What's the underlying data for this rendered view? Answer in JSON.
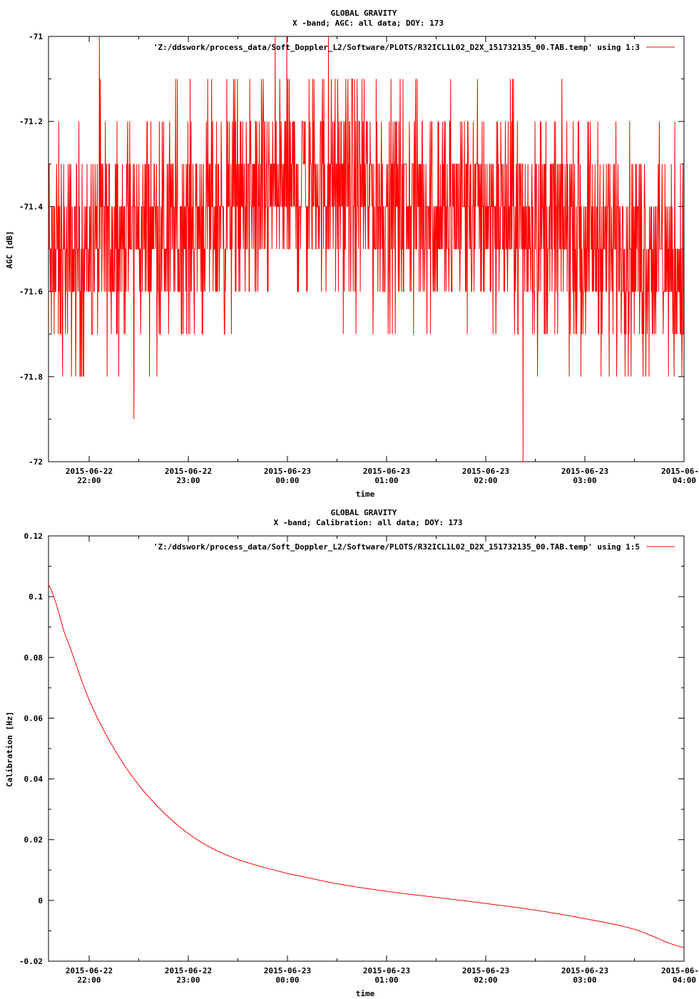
{
  "chart_data": [
    {
      "type": "line",
      "title": "GLOBAL GRAVITY",
      "subtitle": "X -band; AGC: all data; DOY: 173",
      "xlabel": "time",
      "ylabel": "AGC [dB]",
      "ylim": [
        -72,
        -71
      ],
      "yticks": [
        "-71",
        "-71.2",
        "-71.4",
        "-71.6",
        "-71.8",
        "-72"
      ],
      "xtick_dates": [
        "2015-06-22",
        "2015-06-22",
        "2015-06-23",
        "2015-06-23",
        "2015-06-23",
        "2015-06-23",
        "2015-06-"
      ],
      "xtick_times": [
        "22:00",
        "23:00",
        "00:00",
        "01:00",
        "02:00",
        "03:00",
        "04:00"
      ],
      "x_range_hours": [
        21.59,
        28.0
      ],
      "series": [
        {
          "name": "'Z:/ddswork/process_data/Soft_Doppler_L2/Software/PLOTS/R32ICL1L02_D2X_151732135_00.TAB.temp' using 1:3",
          "color": "#ff0000",
          "style": "noisy",
          "mean": -71.45,
          "spread_levels": [
            -71.1,
            -71.2,
            -71.3,
            -71.4,
            -71.5,
            -71.6,
            -71.7,
            -71.8,
            -71.9,
            -72.0
          ],
          "x": [
            21.6,
            22.0,
            22.5,
            23.0,
            23.5,
            24.0,
            24.5,
            25.0,
            25.5,
            26.0,
            26.5,
            27.0,
            27.5,
            28.0
          ],
          "y": [
            -71.55,
            -71.5,
            -71.45,
            -71.45,
            -71.4,
            -71.35,
            -71.35,
            -71.4,
            -71.4,
            -71.4,
            -71.45,
            -71.45,
            -71.5,
            -71.55
          ]
        }
      ],
      "grid": false,
      "legend": "top-right"
    },
    {
      "type": "line",
      "title": "GLOBAL GRAVITY",
      "subtitle": "X -band; Calibration: all data; DOY: 173",
      "xlabel": "time",
      "ylabel": "Calibration [Hz]",
      "ylim": [
        -0.02,
        0.12
      ],
      "yticks": [
        "0.12",
        "0.1",
        "0.08",
        "0.06",
        "0.04",
        "0.02",
        "0",
        "-0.02"
      ],
      "xtick_dates": [
        "2015-06-22",
        "2015-06-22",
        "2015-06-23",
        "2015-06-23",
        "2015-06-23",
        "2015-06-23",
        "2015-06-"
      ],
      "xtick_times": [
        "22:00",
        "23:00",
        "00:00",
        "01:00",
        "02:00",
        "03:00",
        "04:00"
      ],
      "x_range_hours": [
        21.59,
        28.0
      ],
      "series": [
        {
          "name": "'Z:/ddswork/process_data/Soft_Doppler_L2/Software/PLOTS/R32ICL1L02_D2X_151732135_00.TAB.temp' using 1:5",
          "color": "#ff0000",
          "x": [
            21.59,
            21.75,
            22.0,
            22.25,
            22.5,
            22.75,
            23.0,
            23.25,
            23.5,
            23.75,
            24.0,
            24.5,
            25.0,
            25.5,
            26.0,
            26.5,
            27.0,
            27.5,
            28.0
          ],
          "y": [
            0.104,
            0.088,
            0.066,
            0.05,
            0.038,
            0.029,
            0.022,
            0.017,
            0.0135,
            0.011,
            0.0088,
            0.0055,
            0.003,
            0.001,
            -0.001,
            -0.0032,
            -0.006,
            -0.0095,
            -0.0155
          ]
        }
      ],
      "grid": false,
      "legend": "top-right"
    }
  ]
}
